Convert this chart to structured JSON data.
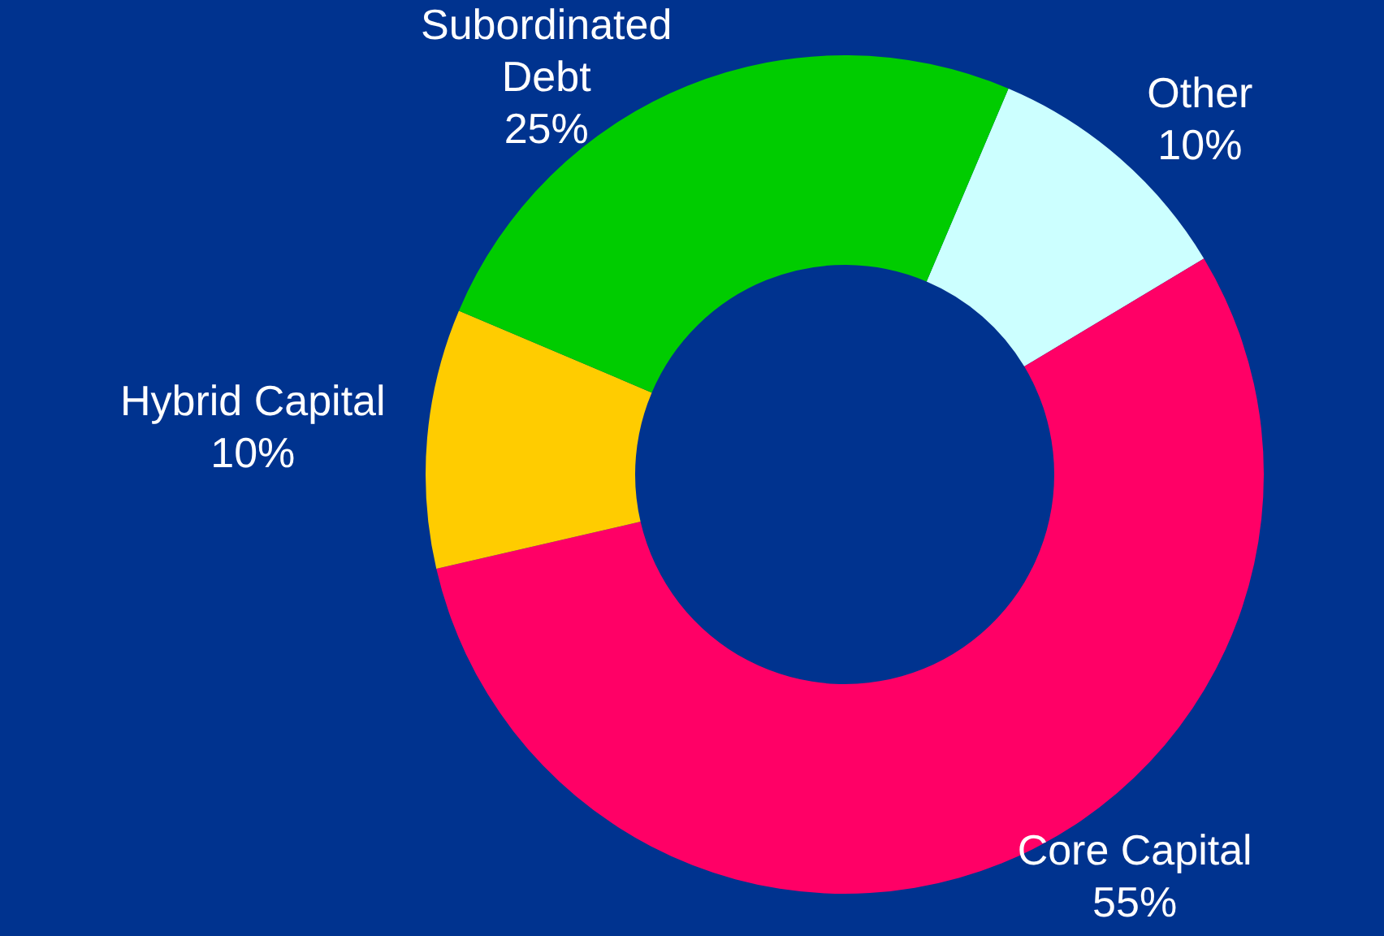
{
  "chart_data": {
    "type": "donut",
    "categories": [
      "Other",
      "Core Capital",
      "Hybrid Capital",
      "Subordinated Debt"
    ],
    "values": [
      10,
      55,
      10,
      25
    ],
    "value_labels": [
      "10%",
      "55%",
      "10%",
      "25%"
    ],
    "colors": [
      "#ccffff",
      "#ff0066",
      "#ffcc00",
      "#00cc00"
    ],
    "legend": false
  }
}
